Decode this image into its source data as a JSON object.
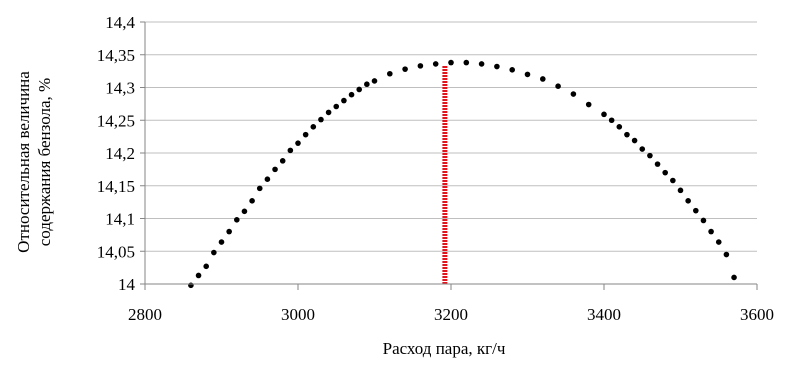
{
  "chart_data": {
    "type": "scatter",
    "title": "",
    "xlabel": "Расход пара, кг/ч",
    "ylabel_line1": "Относительная величина",
    "ylabel_line2": "содержания бензола, %",
    "xlim": [
      2800,
      3600
    ],
    "ylim": [
      14,
      14.4
    ],
    "x_ticks": [
      2800,
      3000,
      3200,
      3400,
      3600
    ],
    "x_tick_labels": [
      "2800",
      "3000",
      "3200",
      "3400",
      "3600"
    ],
    "y_ticks": [
      14,
      14.05,
      14.1,
      14.15,
      14.2,
      14.25,
      14.3,
      14.35,
      14.4
    ],
    "y_tick_labels": [
      "14",
      "14,05",
      "14,1",
      "14,15",
      "14,2",
      "14,25",
      "14,3",
      "14,35",
      "14,4"
    ],
    "grid": "horizontal",
    "legend": "none",
    "series": [
      {
        "color": "#000000",
        "marker": "dot",
        "x": [
          2860,
          2870,
          2880,
          2890,
          2900,
          2910,
          2920,
          2930,
          2940,
          2950,
          2960,
          2970,
          2980,
          2990,
          3000,
          3010,
          3020,
          3030,
          3040,
          3050,
          3060,
          3070,
          3080,
          3090,
          3100,
          3120,
          3140,
          3160,
          3180,
          3200,
          3220,
          3240,
          3260,
          3280,
          3300,
          3320,
          3340,
          3360,
          3380,
          3400,
          3410,
          3420,
          3430,
          3440,
          3450,
          3460,
          3470,
          3480,
          3490,
          3500,
          3510,
          3520,
          3530,
          3540,
          3550,
          3560,
          3570
        ],
        "y": [
          13.998,
          14.013,
          14.027,
          14.048,
          14.064,
          14.08,
          14.098,
          14.111,
          14.127,
          14.146,
          14.16,
          14.175,
          14.188,
          14.204,
          14.215,
          14.228,
          14.24,
          14.251,
          14.262,
          14.271,
          14.28,
          14.289,
          14.297,
          14.305,
          14.31,
          14.321,
          14.328,
          14.333,
          14.336,
          14.338,
          14.338,
          14.336,
          14.332,
          14.327,
          14.32,
          14.313,
          14.302,
          14.29,
          14.274,
          14.259,
          14.25,
          14.24,
          14.228,
          14.219,
          14.206,
          14.196,
          14.183,
          14.17,
          14.158,
          14.143,
          14.127,
          14.112,
          14.097,
          14.08,
          14.064,
          14.045,
          14.01
        ]
      }
    ],
    "marker_line": {
      "x": 3192,
      "y_range": [
        14,
        14.333
      ],
      "color": "#e3121b"
    }
  }
}
